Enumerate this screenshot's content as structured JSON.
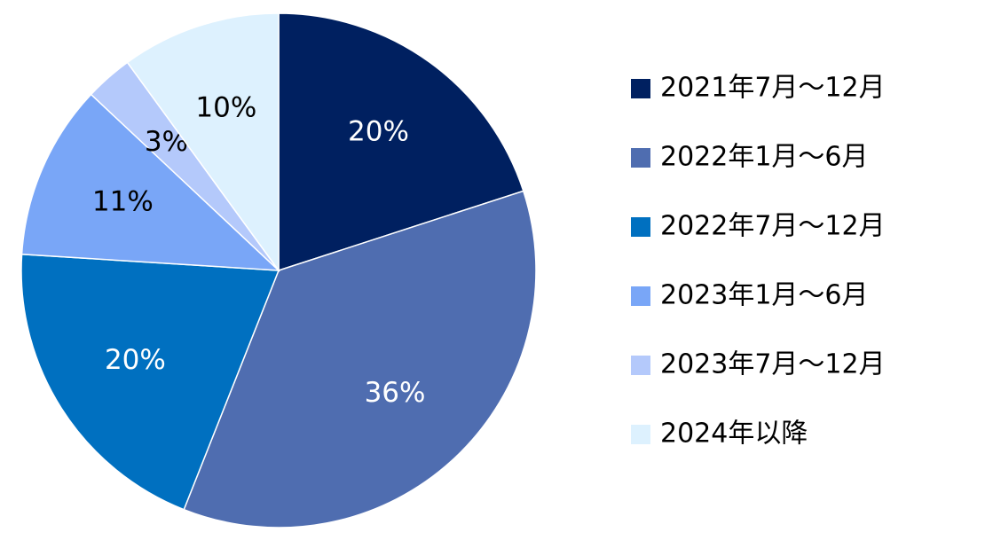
{
  "chart_data": {
    "type": "pie",
    "categories": [
      "2021年7月～12月",
      "2022年1月～6月",
      "2022年7月～12月",
      "2023年1月～6月",
      "2023年7月～12月",
      "2024年以降"
    ],
    "values": [
      20,
      36,
      20,
      11,
      3,
      10
    ],
    "value_labels": [
      "20%",
      "36%",
      "20%",
      "11%",
      "3%",
      "10%"
    ],
    "colors": [
      "#002060",
      "#4f6db0",
      "#0070c0",
      "#79a6f7",
      "#b4c9fb",
      "#ddf1fe"
    ],
    "legend": "right"
  }
}
